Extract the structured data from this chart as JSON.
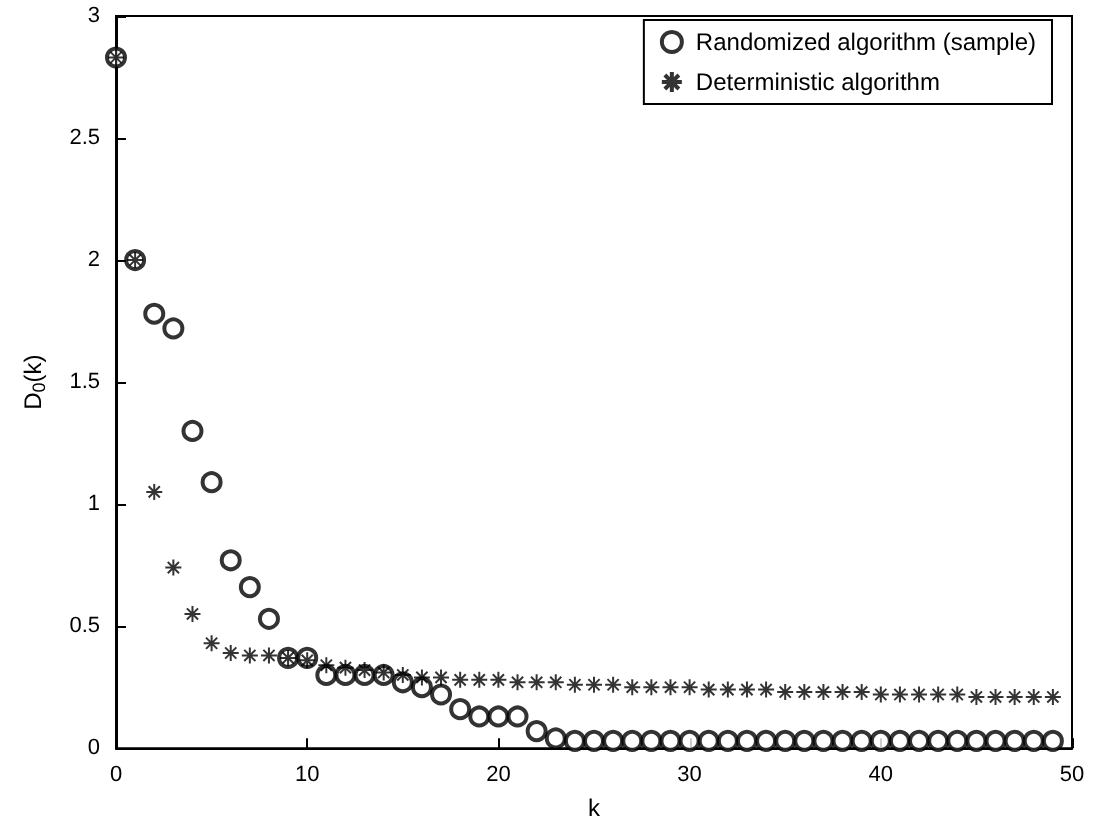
{
  "chart_data": {
    "type": "scatter",
    "xlabel": "k",
    "ylabel": "D$_{0}$(k)",
    "xlim": [
      0,
      50
    ],
    "xticks": [
      0,
      10,
      20,
      30,
      40,
      50
    ],
    "ylim": [
      0,
      3
    ],
    "yticks": [
      0,
      0.5,
      1,
      1.5,
      2,
      2.5,
      3
    ],
    "grid": false,
    "legend": "top right",
    "x": [
      0,
      1,
      2,
      3,
      4,
      5,
      6,
      7,
      8,
      9,
      10,
      11,
      12,
      13,
      14,
      15,
      16,
      17,
      18,
      19,
      20,
      21,
      22,
      23,
      24,
      25,
      26,
      27,
      28,
      29,
      30,
      31,
      32,
      33,
      34,
      35,
      36,
      37,
      38,
      39,
      40,
      41,
      42,
      43,
      44,
      45,
      46,
      47,
      48,
      49
    ],
    "series": [
      {
        "name": "Randomized algorithm (sample)",
        "color": "#000000",
        "marker": "circle",
        "values": [
          2.83,
          2.0,
          1.78,
          1.72,
          1.3,
          1.09,
          0.77,
          0.66,
          0.53,
          0.37,
          0.37,
          0.3,
          0.3,
          0.3,
          0.3,
          0.27,
          0.25,
          0.22,
          0.16,
          0.13,
          0.13,
          0.13,
          0.07,
          0.04,
          0.03,
          0.03,
          0.03,
          0.03,
          0.03,
          0.03,
          0.03,
          0.03,
          0.03,
          0.03,
          0.03,
          0.03,
          0.03,
          0.03,
          0.03,
          0.03,
          0.03,
          0.03,
          0.03,
          0.03,
          0.03,
          0.03,
          0.03,
          0.03,
          0.03,
          0.03
        ]
      },
      {
        "name": "Deterministic algorithm",
        "color": "#000000",
        "marker": "cross",
        "values": [
          2.83,
          2.0,
          1.05,
          0.74,
          0.55,
          0.43,
          0.39,
          0.38,
          0.38,
          0.37,
          0.36,
          0.34,
          0.33,
          0.32,
          0.31,
          0.3,
          0.29,
          0.29,
          0.28,
          0.28,
          0.28,
          0.27,
          0.27,
          0.27,
          0.26,
          0.26,
          0.26,
          0.25,
          0.25,
          0.25,
          0.25,
          0.24,
          0.24,
          0.24,
          0.24,
          0.23,
          0.23,
          0.23,
          0.23,
          0.23,
          0.22,
          0.22,
          0.22,
          0.22,
          0.22,
          0.21,
          0.21,
          0.21,
          0.21,
          0.21
        ]
      }
    ]
  }
}
